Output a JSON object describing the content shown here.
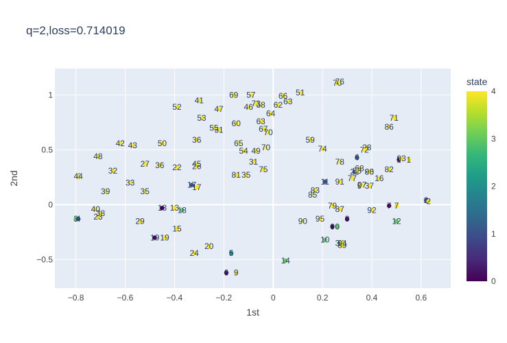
{
  "chart_data": {
    "type": "scatter",
    "title": "q=2,loss=0.714019",
    "xlabel": "1st",
    "ylabel": "2nd",
    "xlim": [
      -0.885,
      0.72
    ],
    "ylim": [
      -0.76,
      1.24
    ],
    "xticks": [
      -0.8,
      -0.6,
      -0.4,
      -0.2,
      0,
      0.2,
      0.4,
      0.6
    ],
    "xtick_labels": [
      "−0.8",
      "−0.6",
      "−0.4",
      "−0.2",
      "0",
      "0.2",
      "0.4",
      "0.6"
    ],
    "yticks": [
      -0.5,
      0,
      0.5,
      1
    ],
    "ytick_labels": [
      "−0.5",
      "0",
      "0.5",
      "1"
    ],
    "grid": true,
    "colorbar": {
      "title": "state",
      "range": [
        0,
        4
      ],
      "ticks": [
        0,
        1,
        2,
        3,
        4
      ],
      "tick_labels": [
        "0",
        "1",
        "2",
        "3",
        "4"
      ],
      "colorscale": [
        "#440154",
        "#482878",
        "#3e4989",
        "#31688e",
        "#26828e",
        "#1f9e89",
        "#35b779",
        "#6ece58",
        "#b5de2b",
        "#fde725"
      ]
    },
    "points": [
      {
        "label": "0",
        "x": 0.24,
        "y": -0.2,
        "state": 0
      },
      {
        "label": "0",
        "x": 0.26,
        "y": -0.2,
        "state": 3
      },
      {
        "label": "1",
        "x": 0.51,
        "y": 0.41,
        "state": 0
      },
      {
        "label": "1",
        "x": 0.55,
        "y": 0.41,
        "state": 4
      },
      {
        "label": "2",
        "x": 0.62,
        "y": 0.04,
        "state": 1
      },
      {
        "label": "2",
        "x": 0.63,
        "y": 0.03,
        "state": 4
      },
      {
        "label": "3",
        "x": -0.8,
        "y": -0.13,
        "state": 3
      },
      {
        "label": "3",
        "x": 0.3,
        "y": -0.13,
        "state": 0
      },
      {
        "label": "4",
        "x": -0.79,
        "y": -0.13,
        "state": 1
      },
      {
        "label": "4",
        "x": -0.79,
        "y": 0.26,
        "state": 1
      },
      {
        "label": "5",
        "x": -0.17,
        "y": -0.44,
        "state": 2
      },
      {
        "label": "6",
        "x": -0.19,
        "y": -0.62,
        "state": 0
      },
      {
        "label": "6",
        "x": 0.34,
        "y": 0.43,
        "state": 1
      },
      {
        "label": "7",
        "x": 0.47,
        "y": -0.01,
        "state": 0
      },
      {
        "label": "7",
        "x": 0.5,
        "y": -0.01,
        "state": 4
      },
      {
        "label": "9",
        "x": -0.15,
        "y": -0.62,
        "state": 4
      },
      {
        "label": "9",
        "x": 0.35,
        "y": 0.17,
        "state": 4
      },
      {
        "label": "10",
        "x": 0.21,
        "y": -0.32,
        "state": 3
      },
      {
        "label": "11",
        "x": 0.21,
        "y": 0.21,
        "state": 1
      },
      {
        "label": "12",
        "x": 0.5,
        "y": -0.15,
        "state": 3
      },
      {
        "label": "13",
        "x": -0.45,
        "y": -0.03,
        "state": 0
      },
      {
        "label": "13",
        "x": -0.4,
        "y": -0.03,
        "state": 4
      },
      {
        "label": "14",
        "x": 0.05,
        "y": -0.51,
        "state": 3
      },
      {
        "label": "15",
        "x": -0.39,
        "y": -0.22,
        "state": 4
      },
      {
        "label": "16",
        "x": 0.43,
        "y": 0.24,
        "state": 4
      },
      {
        "label": "17",
        "x": -0.33,
        "y": 0.18,
        "state": 1
      },
      {
        "label": "17",
        "x": -0.31,
        "y": 0.16,
        "state": 4
      },
      {
        "label": "18",
        "x": -0.37,
        "y": -0.05,
        "state": 3
      },
      {
        "label": "19",
        "x": -0.48,
        "y": -0.3,
        "state": 0
      },
      {
        "label": "19",
        "x": -0.44,
        "y": -0.3,
        "state": 4
      },
      {
        "label": "20",
        "x": -0.26,
        "y": -0.38,
        "state": 4
      },
      {
        "label": "21",
        "x": 0.33,
        "y": 0.3,
        "state": 1
      },
      {
        "label": "22",
        "x": -0.39,
        "y": 0.34,
        "state": 4
      },
      {
        "label": "23",
        "x": -0.71,
        "y": -0.11,
        "state": 4
      },
      {
        "label": "24",
        "x": -0.32,
        "y": -0.44,
        "state": 4
      },
      {
        "label": "26",
        "x": -0.31,
        "y": 0.35,
        "state": 4
      },
      {
        "label": "27",
        "x": -0.52,
        "y": 0.37,
        "state": 4
      },
      {
        "label": "28",
        "x": 0.38,
        "y": 0.52,
        "state": 4
      },
      {
        "label": "29",
        "x": -0.54,
        "y": -0.15,
        "state": 4
      },
      {
        "label": "31",
        "x": -0.08,
        "y": 0.39,
        "state": 4
      },
      {
        "label": "32",
        "x": -0.65,
        "y": 0.31,
        "state": 4
      },
      {
        "label": "33",
        "x": -0.58,
        "y": 0.2,
        "state": 4
      },
      {
        "label": "34",
        "x": 0.27,
        "y": -0.35,
        "state": 3
      },
      {
        "label": "35",
        "x": -0.52,
        "y": 0.12,
        "state": 4
      },
      {
        "label": "35",
        "x": -0.11,
        "y": 0.27,
        "state": 4
      },
      {
        "label": "36",
        "x": -0.46,
        "y": 0.36,
        "state": 4
      },
      {
        "label": "36",
        "x": -0.31,
        "y": 0.59,
        "state": 4
      },
      {
        "label": "37",
        "x": 0.39,
        "y": 0.17,
        "state": 4
      },
      {
        "label": "38",
        "x": -0.7,
        "y": -0.08,
        "state": 4
      },
      {
        "label": "39",
        "x": -0.68,
        "y": 0.12,
        "state": 4
      },
      {
        "label": "40",
        "x": -0.72,
        "y": -0.04,
        "state": 4
      },
      {
        "label": "41",
        "x": -0.3,
        "y": 0.95,
        "state": 4
      },
      {
        "label": "42",
        "x": -0.62,
        "y": 0.56,
        "state": 4
      },
      {
        "label": "43",
        "x": -0.57,
        "y": 0.54,
        "state": 4
      },
      {
        "label": "44",
        "x": -0.79,
        "y": 0.26,
        "state": 4
      },
      {
        "label": "45",
        "x": -0.31,
        "y": 0.37,
        "state": 4
      },
      {
        "label": "46",
        "x": -0.1,
        "y": 0.89,
        "state": 4
      },
      {
        "label": "47",
        "x": -0.22,
        "y": 0.87,
        "state": 4
      },
      {
        "label": "48",
        "x": -0.71,
        "y": 0.44,
        "state": 4
      },
      {
        "label": "49",
        "x": -0.07,
        "y": 0.49,
        "state": 4
      },
      {
        "label": "50",
        "x": -0.45,
        "y": 0.56,
        "state": 4
      },
      {
        "label": "51",
        "x": 0.11,
        "y": 1.02,
        "state": 4
      },
      {
        "label": "51",
        "x": -0.22,
        "y": 0.68,
        "state": 4
      },
      {
        "label": "52",
        "x": -0.39,
        "y": 0.89,
        "state": 4
      },
      {
        "label": "53",
        "x": -0.29,
        "y": 0.79,
        "state": 4
      },
      {
        "label": "54",
        "x": -0.12,
        "y": 0.49,
        "state": 4
      },
      {
        "label": "55",
        "x": -0.24,
        "y": 0.7,
        "state": 4
      },
      {
        "label": "57",
        "x": -0.09,
        "y": 1.0,
        "state": 4
      },
      {
        "label": "58",
        "x": -0.05,
        "y": 0.91,
        "state": 4
      },
      {
        "label": "59",
        "x": 0.15,
        "y": 0.59,
        "state": 4
      },
      {
        "label": "60",
        "x": -0.15,
        "y": 0.74,
        "state": 4
      },
      {
        "label": "62",
        "x": 0.02,
        "y": 0.91,
        "state": 4
      },
      {
        "label": "63",
        "x": 0.06,
        "y": 0.94,
        "state": 4
      },
      {
        "label": "63",
        "x": -0.05,
        "y": 0.76,
        "state": 4
      },
      {
        "label": "64",
        "x": -0.01,
        "y": 0.83,
        "state": 4
      },
      {
        "label": "65",
        "x": -0.14,
        "y": 0.56,
        "state": 4
      },
      {
        "label": "66",
        "x": 0.04,
        "y": 0.99,
        "state": 4
      },
      {
        "label": "67",
        "x": -0.04,
        "y": 0.69,
        "state": 4
      },
      {
        "label": "68",
        "x": 0.35,
        "y": 0.33,
        "state": 4
      },
      {
        "label": "69",
        "x": -0.16,
        "y": 1.0,
        "state": 4
      },
      {
        "label": "70",
        "x": -0.03,
        "y": 0.52,
        "state": 4
      },
      {
        "label": "70",
        "x": -0.02,
        "y": 0.66,
        "state": 4
      },
      {
        "label": "70",
        "x": 0.26,
        "y": 1.11,
        "state": 4
      },
      {
        "label": "71",
        "x": 0.49,
        "y": 0.79,
        "state": 4
      },
      {
        "label": "72",
        "x": 0.37,
        "y": 0.5,
        "state": 4
      },
      {
        "label": "73",
        "x": -0.07,
        "y": 0.92,
        "state": 4
      },
      {
        "label": "74",
        "x": 0.2,
        "y": 0.51,
        "state": 4
      },
      {
        "label": "75",
        "x": -0.04,
        "y": 0.32,
        "state": 4
      },
      {
        "label": "76",
        "x": 0.27,
        "y": 1.12,
        "state": 4
      },
      {
        "label": "77",
        "x": 0.32,
        "y": 0.24,
        "state": 4
      },
      {
        "label": "78",
        "x": 0.27,
        "y": 0.39,
        "state": 4
      },
      {
        "label": "79",
        "x": 0.24,
        "y": -0.01,
        "state": 4
      },
      {
        "label": "80",
        "x": 0.39,
        "y": 0.3,
        "state": 4
      },
      {
        "label": "81",
        "x": -0.15,
        "y": 0.27,
        "state": 4
      },
      {
        "label": "82",
        "x": 0.47,
        "y": 0.32,
        "state": 4
      },
      {
        "label": "83",
        "x": 0.17,
        "y": 0.13,
        "state": 4
      },
      {
        "label": "85",
        "x": 0.16,
        "y": 0.09,
        "state": 4
      },
      {
        "label": "86",
        "x": 0.47,
        "y": 0.71,
        "state": 4
      },
      {
        "label": "87",
        "x": 0.27,
        "y": -0.04,
        "state": 4
      },
      {
        "label": "88",
        "x": 0.34,
        "y": 0.31,
        "state": 4
      },
      {
        "label": "89",
        "x": 0.28,
        "y": -0.37,
        "state": 4
      },
      {
        "label": "90",
        "x": 0.12,
        "y": -0.15,
        "state": 4
      },
      {
        "label": "91",
        "x": 0.27,
        "y": 0.21,
        "state": 4
      },
      {
        "label": "92",
        "x": 0.4,
        "y": -0.05,
        "state": 4
      },
      {
        "label": "93",
        "x": 0.52,
        "y": 0.42,
        "state": 4
      },
      {
        "label": "94",
        "x": 0.28,
        "y": -0.35,
        "state": 4
      },
      {
        "label": "95",
        "x": 0.19,
        "y": -0.13,
        "state": 4
      },
      {
        "label": "96",
        "x": 0.39,
        "y": 0.3,
        "state": 4
      },
      {
        "label": "97",
        "x": 0.36,
        "y": 0.18,
        "state": 4
      }
    ]
  }
}
